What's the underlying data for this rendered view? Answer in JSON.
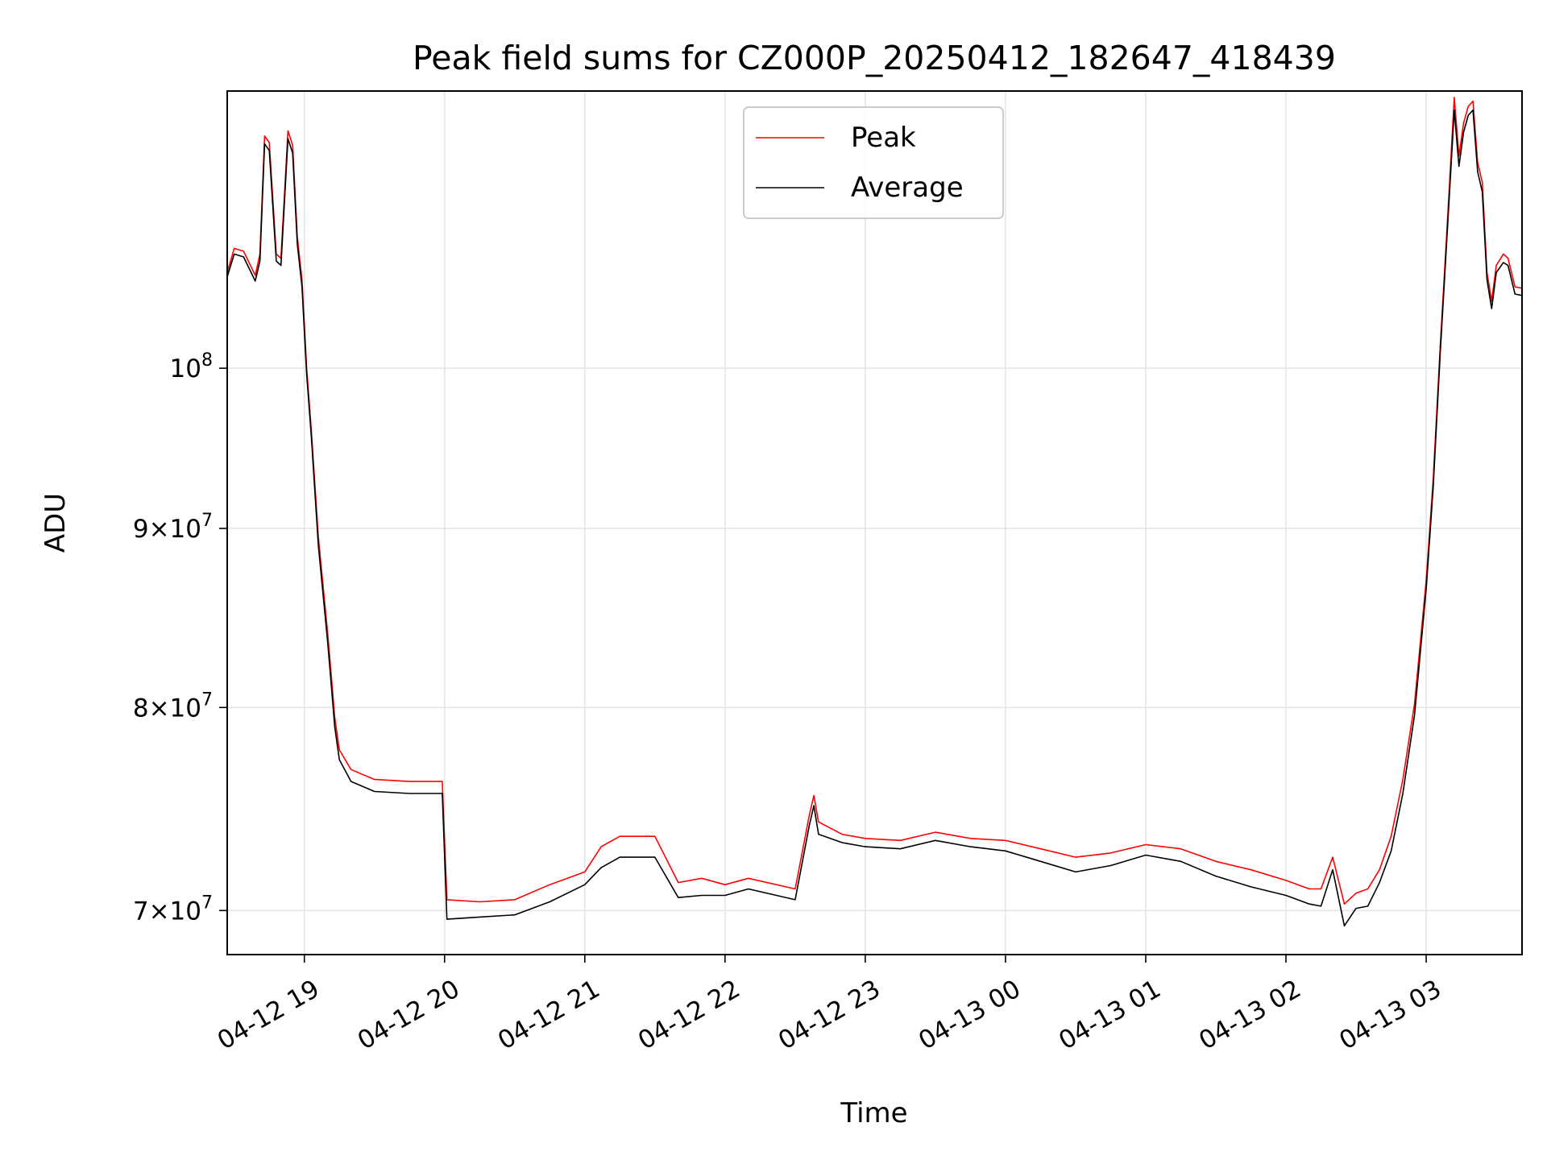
{
  "chart_data": {
    "type": "line",
    "title": "Peak field sums for CZ000P_20250412_182647_418439",
    "xlabel": "Time",
    "ylabel": "ADU",
    "yscale": "log",
    "ylim": [
      68000000,
      120000000
    ],
    "xlim": [
      "2025-04-12 18:27",
      "2025-04-13 03:41"
    ],
    "grid": true,
    "legend_position": "upper center",
    "x_tick_labels": [
      "04-12 19",
      "04-12 20",
      "04-12 21",
      "04-12 22",
      "04-12 23",
      "04-13 00",
      "04-13 01",
      "04-13 02",
      "04-13 03"
    ],
    "x_ticks": [
      "2025-04-12 19:00",
      "2025-04-12 20:00",
      "2025-04-12 21:00",
      "2025-04-12 22:00",
      "2025-04-12 23:00",
      "2025-04-13 00:00",
      "2025-04-13 01:00",
      "2025-04-13 02:00",
      "2025-04-13 03:00"
    ],
    "y_ticks": [
      {
        "value": 70000000,
        "mantissa": "7",
        "exp": "7"
      },
      {
        "value": 80000000,
        "mantissa": "8",
        "exp": "7"
      },
      {
        "value": 90000000,
        "mantissa": "9",
        "exp": "7"
      },
      {
        "value": 100000000,
        "mantissa": "",
        "exp": "8"
      }
    ],
    "x": [
      "2025-04-12 18:27",
      "2025-04-12 18:30",
      "2025-04-12 18:34",
      "2025-04-12 18:39",
      "2025-04-12 18:41",
      "2025-04-12 18:43",
      "2025-04-12 18:45",
      "2025-04-12 18:48",
      "2025-04-12 18:50",
      "2025-04-12 18:53",
      "2025-04-12 18:55",
      "2025-04-12 18:57",
      "2025-04-12 18:59",
      "2025-04-12 19:01",
      "2025-04-12 19:03",
      "2025-04-12 19:06",
      "2025-04-12 19:10",
      "2025-04-12 19:12",
      "2025-04-12 19:13",
      "2025-04-12 19:15",
      "2025-04-12 19:20",
      "2025-04-12 19:30",
      "2025-04-12 19:45",
      "2025-04-12 19:59",
      "2025-04-12 20:01",
      "2025-04-12 20:15",
      "2025-04-12 20:30",
      "2025-04-12 20:45",
      "2025-04-12 21:00",
      "2025-04-12 21:07",
      "2025-04-12 21:15",
      "2025-04-12 21:30",
      "2025-04-12 21:40",
      "2025-04-12 21:50",
      "2025-04-12 22:00",
      "2025-04-12 22:10",
      "2025-04-12 22:30",
      "2025-04-12 22:36",
      "2025-04-12 22:38",
      "2025-04-12 22:40",
      "2025-04-12 22:50",
      "2025-04-12 23:00",
      "2025-04-12 23:15",
      "2025-04-12 23:30",
      "2025-04-12 23:45",
      "2025-04-13 00:00",
      "2025-04-13 00:15",
      "2025-04-13 00:30",
      "2025-04-13 00:45",
      "2025-04-13 01:00",
      "2025-04-13 01:15",
      "2025-04-13 01:30",
      "2025-04-13 01:45",
      "2025-04-13 02:00",
      "2025-04-13 02:10",
      "2025-04-13 02:15",
      "2025-04-13 02:20",
      "2025-04-13 02:25",
      "2025-04-13 02:30",
      "2025-04-13 02:35",
      "2025-04-13 02:40",
      "2025-04-13 02:45",
      "2025-04-13 02:50",
      "2025-04-13 02:55",
      "2025-04-13 03:00",
      "2025-04-13 03:03",
      "2025-04-13 03:06",
      "2025-04-13 03:08",
      "2025-04-13 03:10",
      "2025-04-13 03:12",
      "2025-04-13 03:14",
      "2025-04-13 03:16",
      "2025-04-13 03:18",
      "2025-04-13 03:20",
      "2025-04-13 03:22",
      "2025-04-13 03:24",
      "2025-04-13 03:26",
      "2025-04-13 03:28",
      "2025-04-13 03:30",
      "2025-04-13 03:33",
      "2025-04-13 03:35",
      "2025-04-13 03:38",
      "2025-04-13 03:41"
    ],
    "series": [
      {
        "name": "Peak",
        "color": "#ff0000",
        "values": [
          106500000,
          108200000,
          108000000,
          106300000,
          107800000,
          116500000,
          116000000,
          107800000,
          107500000,
          116900000,
          115800000,
          109000000,
          106000000,
          100000000,
          96000000,
          89500000,
          84000000,
          81000000,
          79500000,
          77800000,
          76800000,
          76300000,
          76200000,
          76200000,
          70500000,
          70400000,
          70500000,
          71200000,
          71800000,
          73000000,
          73500000,
          73500000,
          71300000,
          71500000,
          71200000,
          71500000,
          71000000,
          74500000,
          75500000,
          74200000,
          73600000,
          73400000,
          73300000,
          73700000,
          73400000,
          73300000,
          72900000,
          72500000,
          72700000,
          73100000,
          72900000,
          72300000,
          71900000,
          71400000,
          71000000,
          71000000,
          72500000,
          70300000,
          70800000,
          71000000,
          71900000,
          73500000,
          76300000,
          80200000,
          87000000,
          93000000,
          101500000,
          107000000,
          113000000,
          119500000,
          115000000,
          117500000,
          118800000,
          119200000,
          114500000,
          113000000,
          106500000,
          104500000,
          107000000,
          107800000,
          107500000,
          105500000,
          105400000
        ]
      },
      {
        "name": "Average",
        "color": "#000000",
        "values": [
          106200000,
          107800000,
          107600000,
          105900000,
          107300000,
          115900000,
          115400000,
          107300000,
          107000000,
          116300000,
          115200000,
          108500000,
          105500000,
          99600000,
          95600000,
          89000000,
          83500000,
          80500000,
          79000000,
          77300000,
          76200000,
          75700000,
          75600000,
          75600000,
          69600000,
          69700000,
          69800000,
          70400000,
          71200000,
          72000000,
          72500000,
          72500000,
          70600000,
          70700000,
          70700000,
          71000000,
          70500000,
          74000000,
          75000000,
          73600000,
          73200000,
          73000000,
          72900000,
          73300000,
          73000000,
          72800000,
          72300000,
          71800000,
          72100000,
          72600000,
          72300000,
          71600000,
          71100000,
          70700000,
          70300000,
          70200000,
          71900000,
          69300000,
          70100000,
          70200000,
          71300000,
          72800000,
          75600000,
          79600000,
          86500000,
          92500000,
          101000000,
          106500000,
          112300000,
          118500000,
          114200000,
          116800000,
          118100000,
          118500000,
          113800000,
          112300000,
          106000000,
          104000000,
          106500000,
          107200000,
          107000000,
          105000000,
          104900000
        ]
      }
    ]
  }
}
